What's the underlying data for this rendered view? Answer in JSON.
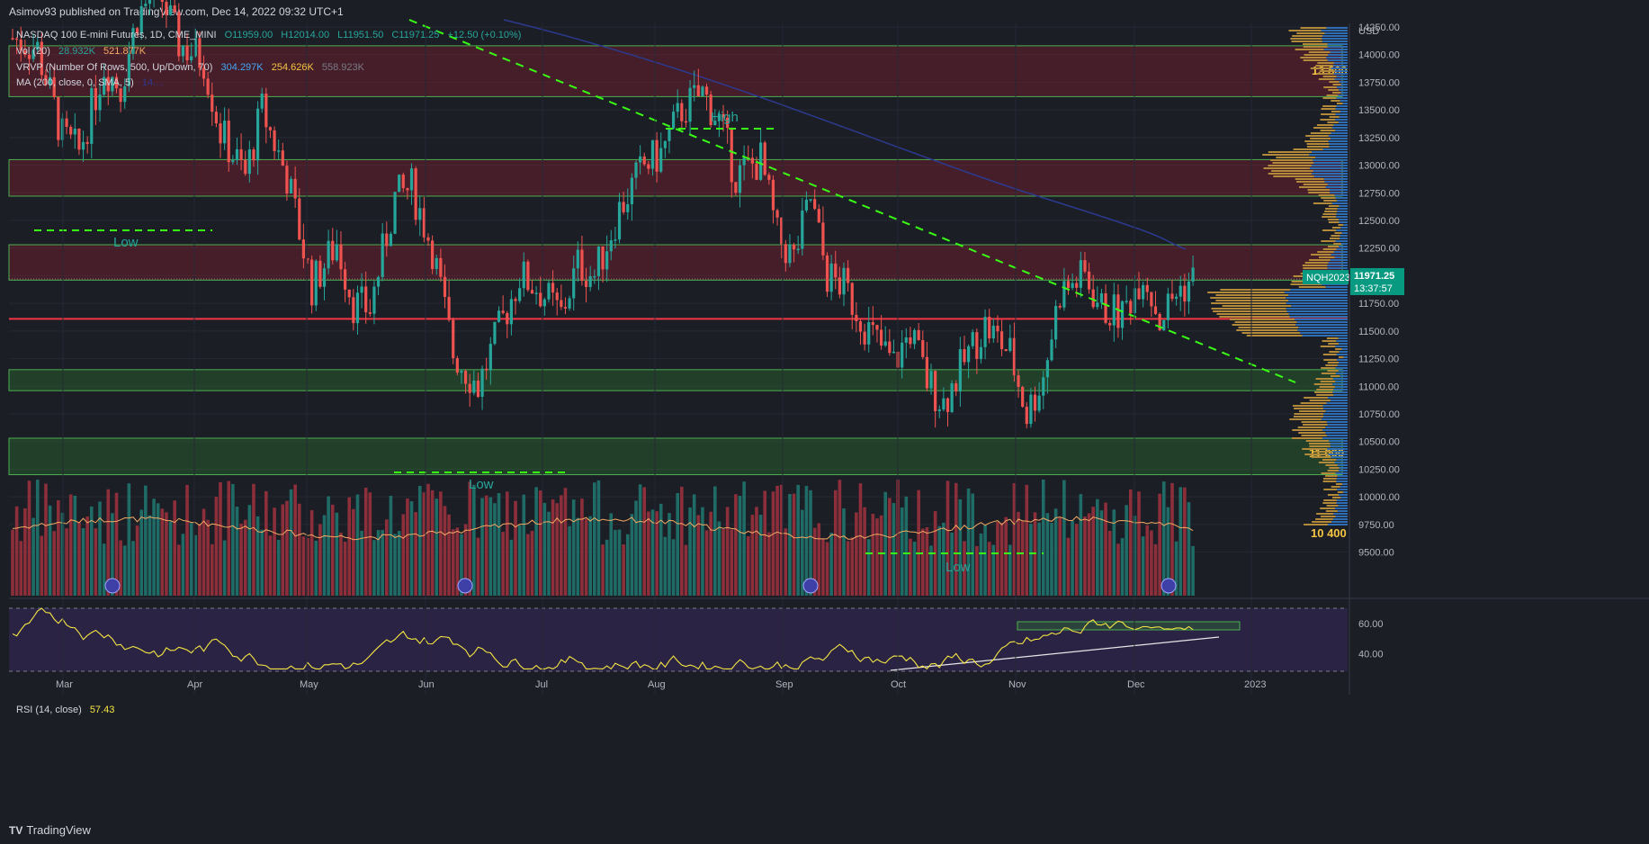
{
  "header": {
    "published": "Asimov93 published on TradingView.com, Dec 14, 2022 09:32 UTC+1"
  },
  "legend": {
    "symbol": "NASDAQ 100 E-mini Futures, 1D, CME_MINI",
    "ohlc": [
      "O11959.00",
      "H12014.00",
      "L11951.50",
      "C11971.25",
      "+12.50 (+0.10%)"
    ],
    "vol": {
      "label": "Vol (20)",
      "v1": "28.932K",
      "v2": "521.877K"
    },
    "vrvp": {
      "label": "VRVP (Number Of Rows, 500, Up/Down, 70)",
      "v1": "304.297K",
      "v2": "254.626K",
      "v3": "558.923K"
    },
    "ma": {
      "label": "MA (200, close, 0, SMA, 5)",
      "value": "14...."
    },
    "rsi": {
      "label": "RSI (14, close)",
      "value": "57.43"
    }
  },
  "colors": {
    "bg": "#1c1e26",
    "up": "#26a69a",
    "down": "#ef5350",
    "ma": "#2b3a8f",
    "trend": "#39ff14",
    "support": "#f23645",
    "volMA": "#f5a962",
    "rsiLine": "#f5e642",
    "accent": "#089981",
    "gold": "#f5c542"
  },
  "chart_data": {
    "type": "candlestick",
    "currency": "USD",
    "price_axis": {
      "ticks": [
        14250,
        14000,
        13750,
        13500,
        13250,
        13000,
        12750,
        12500,
        12250,
        12000,
        11750,
        11500,
        11250,
        11000,
        10750,
        10500,
        10250,
        10000,
        9750,
        9500
      ],
      "labels": [
        "14250.00",
        "14000.00",
        "13750.00",
        "13500.00",
        "13250.00",
        "13000.00",
        "12750.00",
        "12500.00",
        "12250.00",
        "12000.00",
        "11750.00",
        "11500.00",
        "11250.00",
        "11000.00",
        "10750.00",
        "10500.00",
        "10250.00",
        "10000.00",
        "9750.00",
        "9500.00"
      ],
      "range": [
        9380,
        14410
      ]
    },
    "time_axis": [
      "Mar",
      "Apr",
      "May",
      "Jun",
      "Jul",
      "Aug",
      "Sep",
      "Oct",
      "Nov",
      "Dec",
      "2023"
    ],
    "last_price": {
      "symbol": "NQH2023",
      "price": "11971.25",
      "countdown": "13:37:57"
    },
    "zone_labels": [
      "13 800",
      "11 000",
      "10 400"
    ],
    "text_annotations": [
      "High",
      "Low",
      "Low",
      "Low"
    ],
    "red_zones": [
      [
        13620,
        14080
      ],
      [
        12720,
        13050
      ],
      [
        11960,
        12280
      ]
    ],
    "green_zones": [
      [
        10960,
        11150
      ],
      [
        10200,
        10530
      ]
    ],
    "support_line": 11610,
    "waypoints": [
      [
        0,
        14150
      ],
      [
        6,
        14050
      ],
      [
        12,
        13250
      ],
      [
        16,
        13120
      ],
      [
        22,
        13900
      ],
      [
        26,
        13700
      ],
      [
        30,
        14350
      ],
      [
        35,
        14600
      ],
      [
        40,
        14100
      ],
      [
        46,
        13950
      ],
      [
        50,
        13300
      ],
      [
        56,
        12900
      ],
      [
        60,
        13500
      ],
      [
        66,
        12900
      ],
      [
        72,
        11900
      ],
      [
        78,
        12300
      ],
      [
        82,
        11750
      ],
      [
        86,
        11700
      ],
      [
        92,
        12700
      ],
      [
        96,
        12800
      ],
      [
        101,
        12250
      ],
      [
        106,
        11300
      ],
      [
        112,
        11000
      ],
      [
        116,
        11400
      ],
      [
        122,
        12000
      ],
      [
        126,
        11900
      ],
      [
        132,
        11650
      ],
      [
        136,
        12100
      ],
      [
        140,
        12000
      ],
      [
        146,
        12600
      ],
      [
        152,
        13000
      ],
      [
        156,
        13100
      ],
      [
        161,
        13500
      ],
      [
        166,
        13650
      ],
      [
        170,
        13400
      ],
      [
        174,
        12900
      ],
      [
        180,
        13050
      ],
      [
        184,
        12350
      ],
      [
        188,
        12150
      ],
      [
        192,
        12700
      ],
      [
        196,
        12000
      ],
      [
        200,
        11900
      ],
      [
        206,
        11500
      ],
      [
        212,
        11200
      ],
      [
        216,
        11500
      ],
      [
        220,
        11050
      ],
      [
        224,
        10850
      ],
      [
        230,
        11300
      ],
      [
        234,
        11550
      ],
      [
        240,
        11300
      ],
      [
        244,
        10750
      ],
      [
        248,
        11100
      ],
      [
        252,
        11850
      ],
      [
        258,
        12000
      ],
      [
        262,
        11700
      ],
      [
        267,
        11650
      ],
      [
        272,
        12050
      ],
      [
        276,
        11600
      ],
      [
        280,
        11850
      ],
      [
        284,
        11971
      ]
    ],
    "volume": {
      "avg_range": [
        180000,
        300000
      ]
    },
    "rsi": {
      "axis": [
        60,
        40
      ],
      "value": 57.43,
      "last_segment": [
        [
          240,
          62
        ],
        [
          258,
          58
        ],
        [
          270,
          59
        ],
        [
          284,
          57.4
        ]
      ]
    },
    "trendlines": [
      {
        "from": [
          "Mar",
          "14560"
        ],
        "to": [
          "Dec",
          "11620"
        ]
      }
    ]
  }
}
